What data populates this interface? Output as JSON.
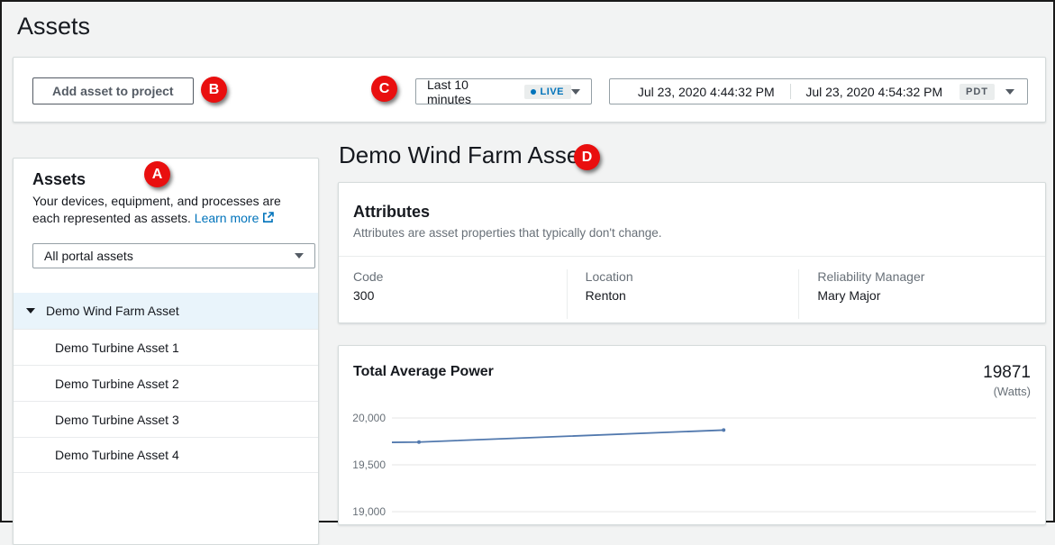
{
  "page": {
    "title": "Assets"
  },
  "toolbar": {
    "add_button": "Add asset to project",
    "time_range": {
      "label": "Last 10 minutes",
      "live_badge": "LIVE"
    },
    "date_range": {
      "start": "Jul 23, 2020 4:44:32 PM",
      "end": "Jul 23, 2020 4:54:32 PM",
      "timezone": "PDT"
    }
  },
  "sidebar": {
    "title": "Assets",
    "description": "Your devices, equipment, and processes are each represented as assets.",
    "learn_more": "Learn more",
    "filter_select": {
      "value": "All portal assets"
    },
    "tree": {
      "root": "Demo Wind Farm Asset",
      "children": [
        "Demo Turbine Asset 1",
        "Demo Turbine Asset 2",
        "Demo Turbine Asset 3",
        "Demo Turbine Asset 4"
      ]
    }
  },
  "main": {
    "heading": "Demo Wind Farm Asset",
    "attributes": {
      "title": "Attributes",
      "subtitle": "Attributes are asset properties that typically don't change.",
      "items": [
        {
          "label": "Code",
          "value": "300"
        },
        {
          "label": "Location",
          "value": "Renton"
        },
        {
          "label": "Reliability Manager",
          "value": "Mary Major"
        }
      ]
    }
  },
  "chart_data": {
    "type": "line",
    "title": "Total Average Power",
    "current_value": "19871",
    "unit_label": "(Watts)",
    "ylabel": "Watts",
    "ylim": [
      18850,
      20100
    ],
    "yticks": [
      {
        "value": 20000,
        "label": "20,000"
      },
      {
        "value": 19500,
        "label": "19,500"
      },
      {
        "value": 19000,
        "label": "19,000"
      }
    ],
    "grid": true,
    "legend": false,
    "x_range": {
      "start": "Jul 23, 2020 4:44:32 PM",
      "end": "Jul 23, 2020 4:54:32 PM"
    },
    "series": [
      {
        "name": "Total Average Power",
        "color": "#5279ae",
        "points_x_fraction_value": [
          [
            0.0,
            19740
          ],
          [
            0.042,
            19743
          ],
          [
            0.515,
            19871
          ]
        ]
      }
    ]
  },
  "callouts": {
    "a": "A",
    "b": "B",
    "c": "C",
    "d": "D"
  },
  "colors": {
    "accent_link": "#0073bb",
    "live_badge_text": "#0073bb",
    "callout_red": "#e90f0f",
    "chart_line": "#5279ae",
    "selected_row_bg": "#e9f4fb",
    "page_bg": "#f2f3f3"
  }
}
